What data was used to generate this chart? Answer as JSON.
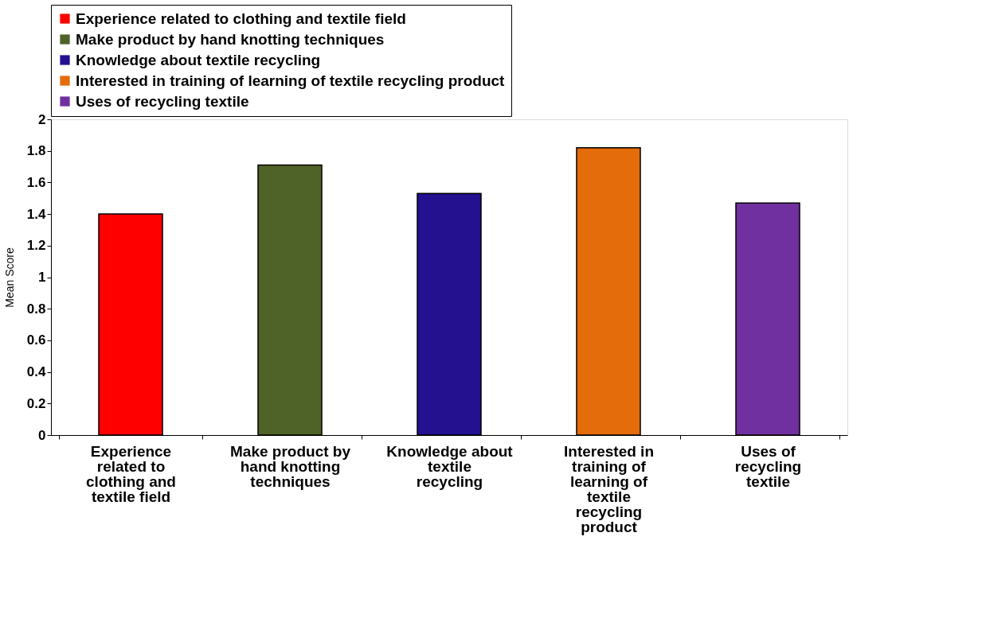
{
  "chart_data": {
    "type": "bar",
    "ylabel": "Mean Score",
    "categories": [
      "Experience related to clothing and textile field",
      "Make product by hand knotting techniques",
      "Knowledge about textile recycling",
      "Interested in training of learning of textile recycling product",
      "Uses of recycling textile"
    ],
    "series": [
      {
        "name": "Experience related to clothing and textile field",
        "color": "#ff0000",
        "values": [
          1.4,
          null,
          null,
          null,
          null
        ]
      },
      {
        "name": "Make product by hand knotting techniques",
        "color": "#4f6228",
        "values": [
          null,
          1.71,
          null,
          null,
          null
        ]
      },
      {
        "name": "Knowledge about textile recycling",
        "color": "#23118f",
        "values": [
          null,
          null,
          1.53,
          null,
          null
        ]
      },
      {
        "name": "Interested in training of learning of textile recycling product",
        "color": "#e46c0a",
        "values": [
          null,
          null,
          null,
          1.82,
          null
        ]
      },
      {
        "name": "Uses of recycling textile",
        "color": "#7030a0",
        "values": [
          null,
          null,
          null,
          null,
          1.47
        ]
      }
    ],
    "ylim": [
      0,
      2
    ],
    "yticks": [
      0,
      0.2,
      0.4,
      0.6,
      0.8,
      1,
      1.2,
      1.4,
      1.6,
      1.8,
      2
    ],
    "grid": false,
    "legend": "top"
  }
}
